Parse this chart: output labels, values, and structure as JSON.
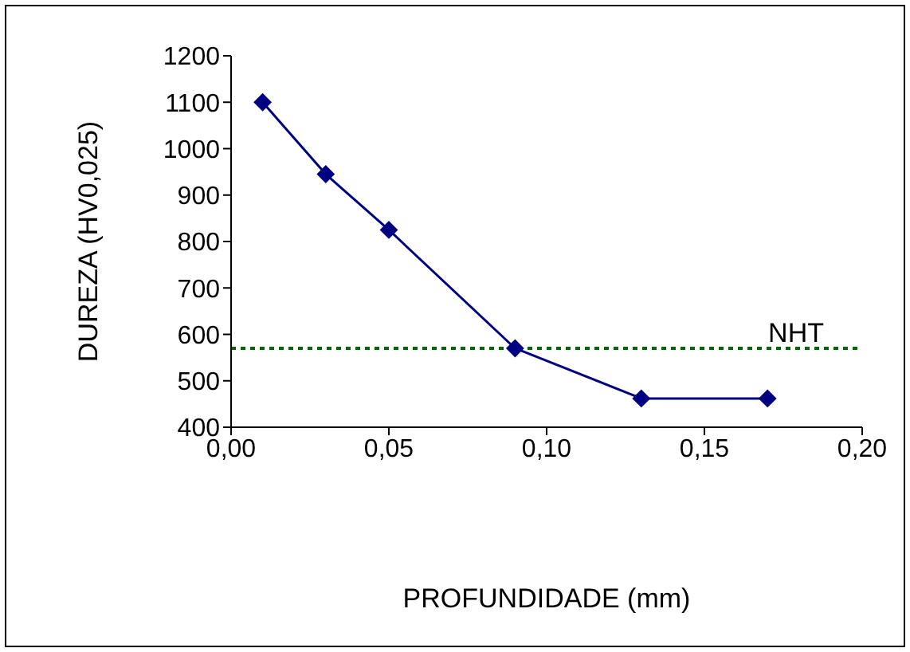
{
  "chart_data": {
    "type": "line",
    "xlabel": "PROFUNDIDADE (mm)",
    "ylabel": "DUREZA (HV0,025)",
    "x": [
      0.01,
      0.03,
      0.05,
      0.09,
      0.13,
      0.17
    ],
    "series": [
      {
        "color": "#000080",
        "values": [
          1100,
          945,
          825,
          570,
          462,
          462
        ]
      }
    ],
    "xlim": [
      0,
      0.2
    ],
    "xticks": [
      {
        "value": 0,
        "label": "0,00"
      },
      {
        "value": 0.05,
        "label": "0,05"
      },
      {
        "value": 0.1,
        "label": "0,10"
      },
      {
        "value": 0.15,
        "label": "0,15"
      },
      {
        "value": 0.2,
        "label": "0,20"
      }
    ],
    "ylim": [
      400,
      1200
    ],
    "yticks": [
      400,
      500,
      600,
      700,
      800,
      900,
      1000,
      1100,
      1200
    ],
    "ref_lines": [
      {
        "axis": "y",
        "value": 570,
        "label": "NHT",
        "color": "#006600",
        "line_style": "dotted"
      }
    ],
    "marker": "diamond",
    "line_style": "solid",
    "grid": false,
    "legend": false
  }
}
